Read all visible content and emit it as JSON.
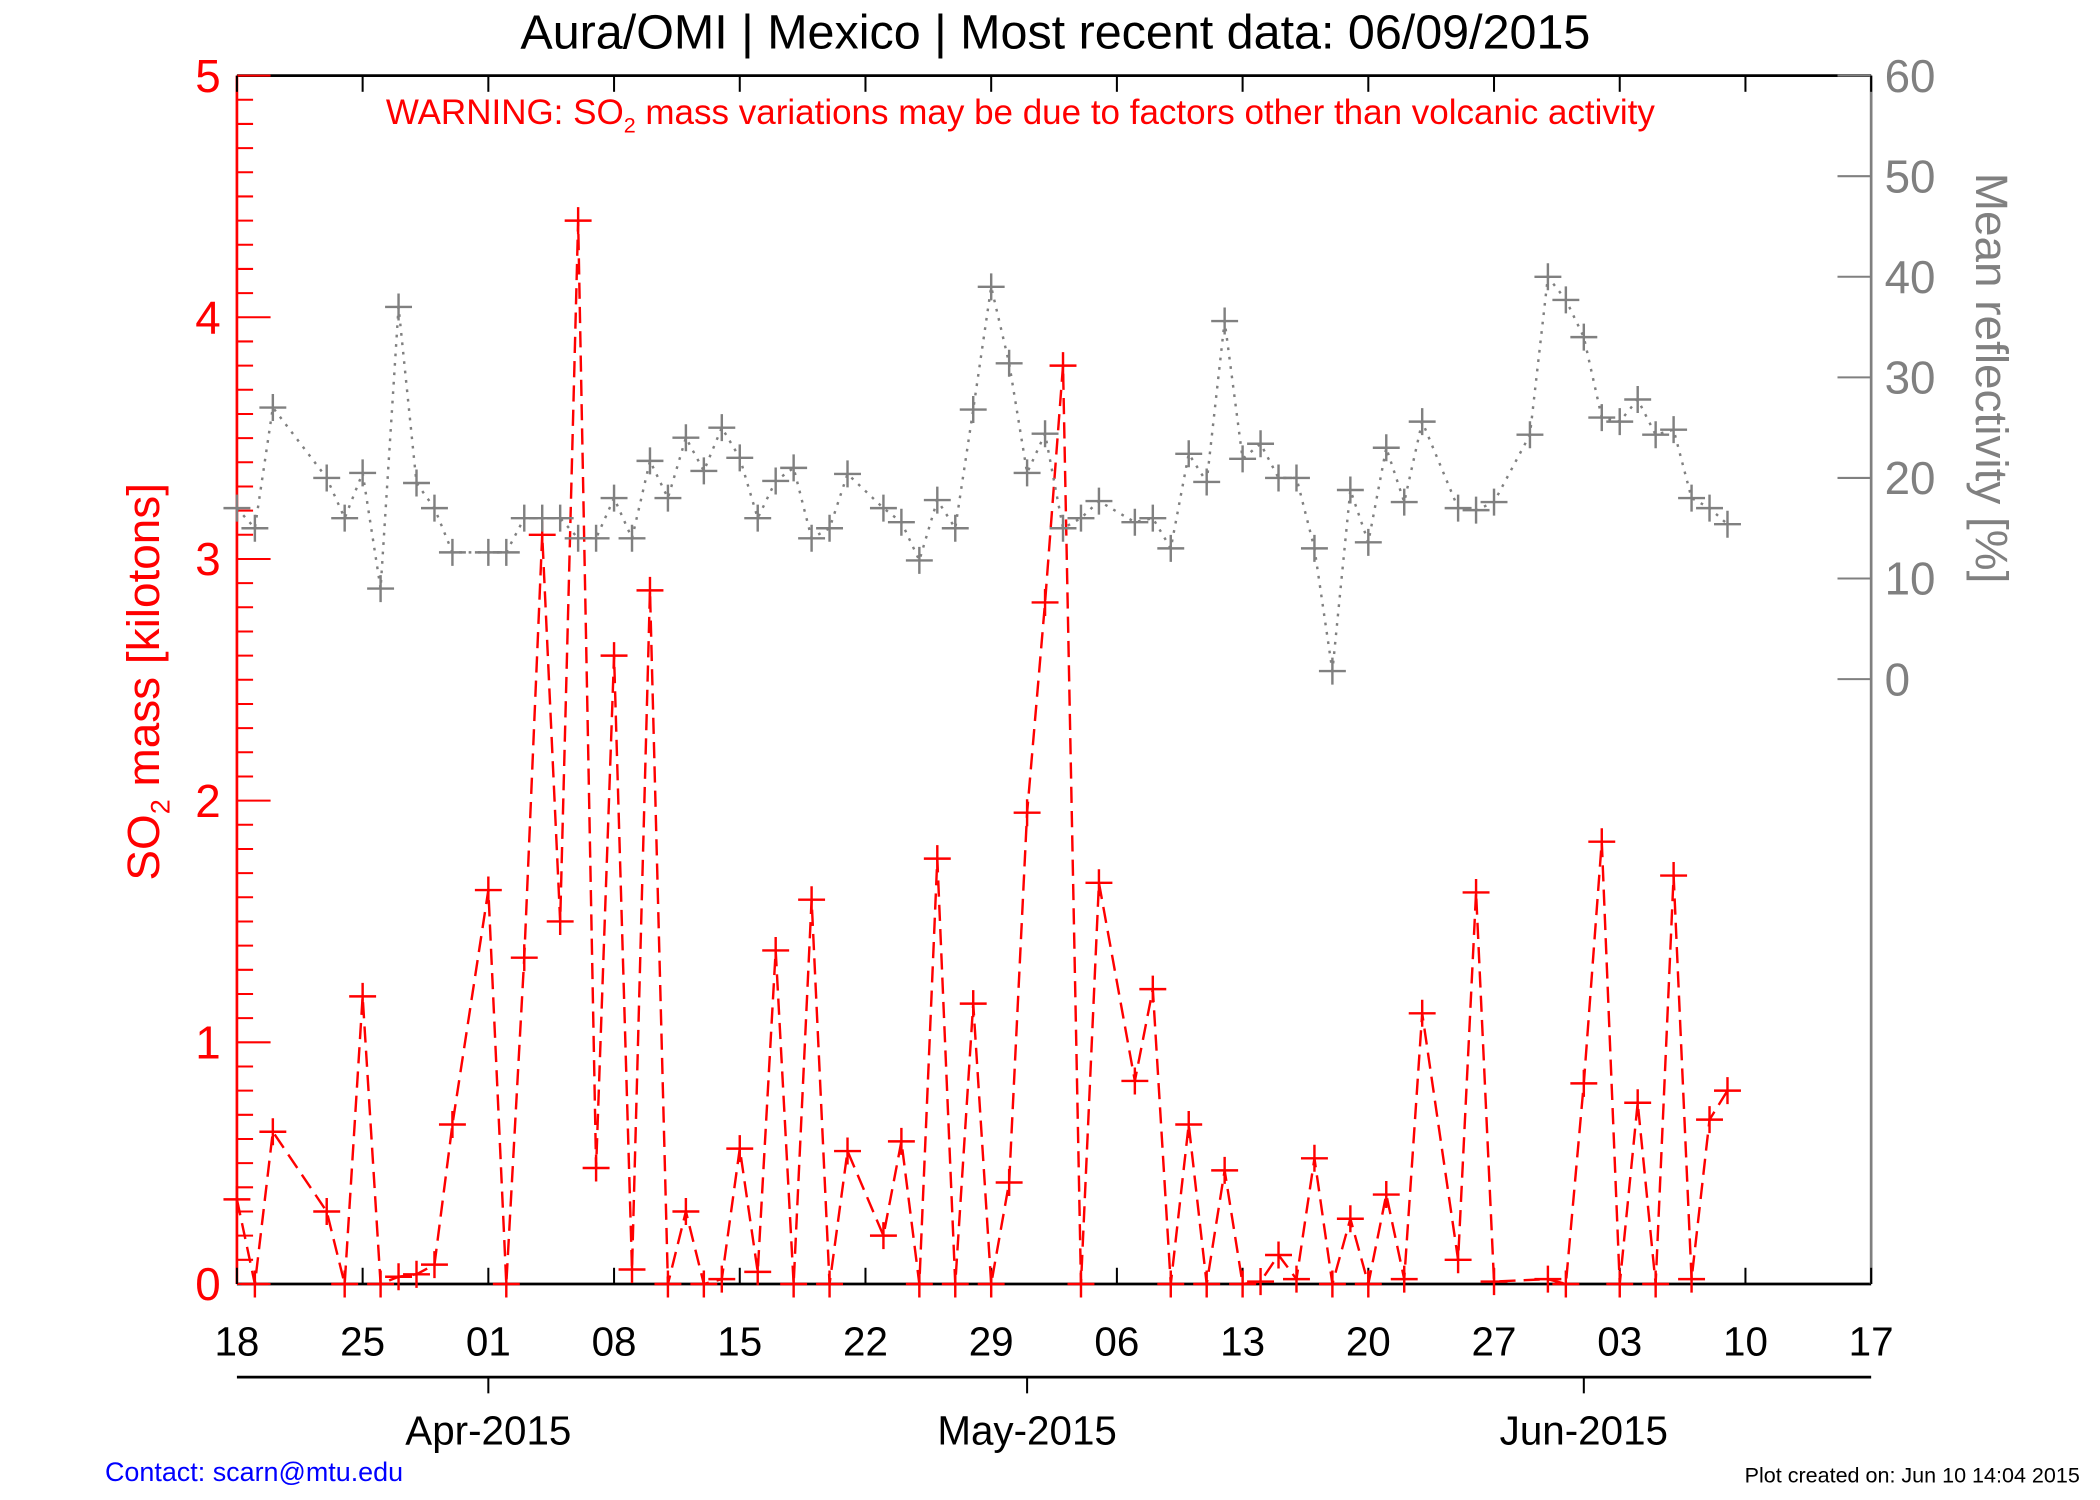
{
  "chart_data": {
    "type": "line",
    "title": "Aura/OMI | Mexico | Most recent data: 06/09/2015",
    "warning": {
      "prefix": "WARNING: SO",
      "sub": "2",
      "suffix": " mass variations may be due to factors other than volcanic activity"
    },
    "ylabel_left": {
      "prefix": "SO",
      "sub": "2",
      "suffix": " mass [kilotons]"
    },
    "ylabel_right": "Mean reflectivity [%]",
    "xlim": [
      "2015-03-18",
      "2015-06-17"
    ],
    "ylim_left": [
      0,
      5
    ],
    "ylim_right": [
      0,
      60
    ],
    "left_ticks": [
      "0",
      "1",
      "2",
      "3",
      "4",
      "5"
    ],
    "right_ticks": [
      "0",
      "10",
      "20",
      "30",
      "40",
      "50",
      "60"
    ],
    "x_day_ticks": [
      "18",
      "25",
      "01",
      "08",
      "15",
      "22",
      "29",
      "06",
      "13",
      "20",
      "27",
      "03",
      "10",
      "17"
    ],
    "x_month_labels": [
      {
        "label": "Apr-2015",
        "date": "2015-04-01"
      },
      {
        "label": "May-2015",
        "date": "2015-05-01"
      },
      {
        "label": "Jun-2015",
        "date": "2015-06-01"
      }
    ],
    "grid": false,
    "colors": {
      "so2": "#ff0000",
      "reflectivity": "#808080",
      "contact": "#0000ff"
    },
    "series": [
      {
        "axis": "left",
        "style": "dashed",
        "marker": "plus",
        "points": [
          [
            "2015-03-18",
            0.35
          ],
          [
            "2015-03-19",
            0
          ],
          [
            "2015-03-20",
            0.63
          ],
          [
            "2015-03-23",
            0.3
          ],
          [
            "2015-03-24",
            0
          ],
          [
            "2015-03-25",
            1.19
          ],
          [
            "2015-03-26",
            0
          ],
          [
            "2015-03-27",
            0.03
          ],
          [
            "2015-03-28",
            0.04
          ],
          [
            "2015-03-29",
            0.08
          ],
          [
            "2015-03-30",
            0.66
          ],
          [
            "2015-04-01",
            1.63
          ],
          [
            "2015-04-02",
            0
          ],
          [
            "2015-04-03",
            1.35
          ],
          [
            "2015-04-04",
            3.1
          ],
          [
            "2015-04-05",
            1.5
          ],
          [
            "2015-04-06",
            4.4
          ],
          [
            "2015-04-07",
            0.48
          ],
          [
            "2015-04-08",
            2.6
          ],
          [
            "2015-04-09",
            0.06
          ],
          [
            "2015-04-10",
            2.87
          ],
          [
            "2015-04-11",
            0
          ],
          [
            "2015-04-12",
            0.3
          ],
          [
            "2015-04-13",
            0
          ],
          [
            "2015-04-14",
            0.02
          ],
          [
            "2015-04-15",
            0.56
          ],
          [
            "2015-04-16",
            0.05
          ],
          [
            "2015-04-17",
            1.38
          ],
          [
            "2015-04-18",
            0
          ],
          [
            "2015-04-19",
            1.59
          ],
          [
            "2015-04-20",
            0
          ],
          [
            "2015-04-21",
            0.55
          ],
          [
            "2015-04-23",
            0.2
          ],
          [
            "2015-04-24",
            0.59
          ],
          [
            "2015-04-25",
            0
          ],
          [
            "2015-04-26",
            1.76
          ],
          [
            "2015-04-27",
            0
          ],
          [
            "2015-04-28",
            1.16
          ],
          [
            "2015-04-29",
            0
          ],
          [
            "2015-04-30",
            0.42
          ],
          [
            "2015-05-01",
            1.95
          ],
          [
            "2015-05-02",
            2.82
          ],
          [
            "2015-05-03",
            3.8
          ],
          [
            "2015-05-04",
            0
          ],
          [
            "2015-05-05",
            1.66
          ],
          [
            "2015-05-07",
            0.84
          ],
          [
            "2015-05-08",
            1.22
          ],
          [
            "2015-05-09",
            0
          ],
          [
            "2015-05-10",
            0.66
          ],
          [
            "2015-05-11",
            0
          ],
          [
            "2015-05-12",
            0.47
          ],
          [
            "2015-05-13",
            0
          ],
          [
            "2015-05-14",
            0.01
          ],
          [
            "2015-05-15",
            0.12
          ],
          [
            "2015-05-16",
            0.02
          ],
          [
            "2015-05-17",
            0.52
          ],
          [
            "2015-05-18",
            0
          ],
          [
            "2015-05-19",
            0.27
          ],
          [
            "2015-05-20",
            0
          ],
          [
            "2015-05-21",
            0.37
          ],
          [
            "2015-05-22",
            0.02
          ],
          [
            "2015-05-23",
            1.12
          ],
          [
            "2015-05-25",
            0.1
          ],
          [
            "2015-05-26",
            1.62
          ],
          [
            "2015-05-27",
            0.01
          ],
          [
            "2015-05-30",
            0.02
          ],
          [
            "2015-05-31",
            0
          ],
          [
            "2015-06-01",
            0.83
          ],
          [
            "2015-06-02",
            1.83
          ],
          [
            "2015-06-03",
            0
          ],
          [
            "2015-06-04",
            0.75
          ],
          [
            "2015-06-05",
            0
          ],
          [
            "2015-06-06",
            1.69
          ],
          [
            "2015-06-07",
            0.02
          ],
          [
            "2015-06-08",
            0.68
          ],
          [
            "2015-06-09",
            0.8
          ]
        ]
      },
      {
        "axis": "right",
        "style": "dotted",
        "marker": "plus",
        "points": [
          [
            "2015-03-18",
            17
          ],
          [
            "2015-03-19",
            15
          ],
          [
            "2015-03-20",
            27
          ],
          [
            "2015-03-23",
            20
          ],
          [
            "2015-03-24",
            16
          ],
          [
            "2015-03-25",
            20.5
          ],
          [
            "2015-03-26",
            9
          ],
          [
            "2015-03-27",
            37
          ],
          [
            "2015-03-28",
            19.5
          ],
          [
            "2015-03-29",
            17
          ],
          [
            "2015-03-30",
            12.6
          ],
          [
            "2015-04-01",
            12.6
          ],
          [
            "2015-04-02",
            12.6
          ],
          [
            "2015-04-03",
            16
          ],
          [
            "2015-04-04",
            16
          ],
          [
            "2015-04-05",
            16
          ],
          [
            "2015-04-06",
            14
          ],
          [
            "2015-04-07",
            14
          ],
          [
            "2015-04-08",
            18
          ],
          [
            "2015-04-09",
            14
          ],
          [
            "2015-04-10",
            21.7
          ],
          [
            "2015-04-11",
            18
          ],
          [
            "2015-04-12",
            24
          ],
          [
            "2015-04-13",
            20.7
          ],
          [
            "2015-04-14",
            25
          ],
          [
            "2015-04-15",
            22
          ],
          [
            "2015-04-16",
            16
          ],
          [
            "2015-04-17",
            19.7
          ],
          [
            "2015-04-18",
            21
          ],
          [
            "2015-04-19",
            14
          ],
          [
            "2015-04-20",
            15
          ],
          [
            "2015-04-21",
            20.4
          ],
          [
            "2015-04-23",
            17
          ],
          [
            "2015-04-24",
            15.6
          ],
          [
            "2015-04-25",
            11.8
          ],
          [
            "2015-04-26",
            17.8
          ],
          [
            "2015-04-27",
            15
          ],
          [
            "2015-04-28",
            26.8
          ],
          [
            "2015-04-29",
            39
          ],
          [
            "2015-04-30",
            31.4
          ],
          [
            "2015-05-01",
            20.5
          ],
          [
            "2015-05-02",
            24.4
          ],
          [
            "2015-05-03",
            15
          ],
          [
            "2015-05-04",
            16
          ],
          [
            "2015-05-05",
            17.7
          ],
          [
            "2015-05-07",
            15.6
          ],
          [
            "2015-05-08",
            16
          ],
          [
            "2015-05-09",
            13
          ],
          [
            "2015-05-10",
            22.4
          ],
          [
            "2015-05-11",
            19.6
          ],
          [
            "2015-05-12",
            35.6
          ],
          [
            "2015-05-13",
            21.9
          ],
          [
            "2015-05-14",
            23.4
          ],
          [
            "2015-05-15",
            20
          ],
          [
            "2015-05-16",
            20
          ],
          [
            "2015-05-17",
            13
          ],
          [
            "2015-05-18",
            0.8
          ],
          [
            "2015-05-19",
            18.8
          ],
          [
            "2015-05-20",
            13.6
          ],
          [
            "2015-05-21",
            23
          ],
          [
            "2015-05-22",
            17.6
          ],
          [
            "2015-05-23",
            25.6
          ],
          [
            "2015-05-25",
            17
          ],
          [
            "2015-05-26",
            16.8
          ],
          [
            "2015-05-27",
            17.6
          ],
          [
            "2015-05-29",
            24.3
          ],
          [
            "2015-05-30",
            40
          ],
          [
            "2015-05-31",
            37.7
          ],
          [
            "2015-06-01",
            34
          ],
          [
            "2015-06-02",
            26
          ],
          [
            "2015-06-03",
            25.6
          ],
          [
            "2015-06-04",
            27.8
          ],
          [
            "2015-06-05",
            24.3
          ],
          [
            "2015-06-06",
            24.8
          ],
          [
            "2015-06-07",
            18
          ],
          [
            "2015-06-08",
            17
          ],
          [
            "2015-06-09",
            15.4
          ]
        ]
      }
    ]
  },
  "footer": {
    "contact": "Contact: scarn@mtu.edu",
    "created": "Plot created on: Jun 10 14:04 2015"
  }
}
